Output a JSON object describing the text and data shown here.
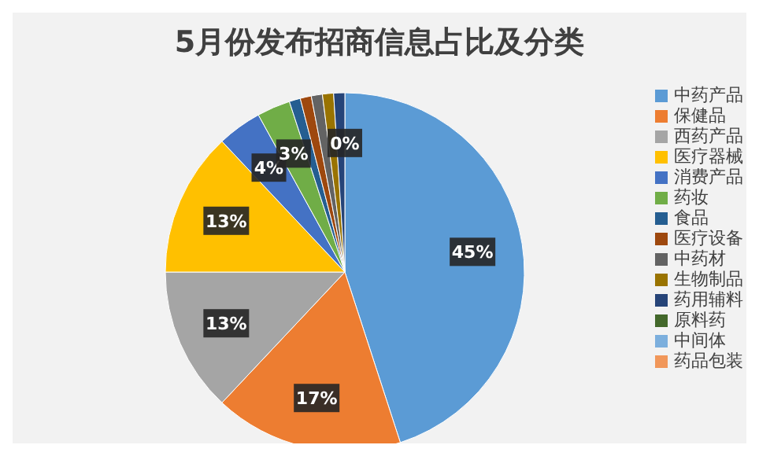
{
  "chart_data": {
    "type": "pie",
    "title": "5月份发布招商信息占比及分类",
    "categories": [
      "中药产品",
      "保健品",
      "西药产品",
      "医疗器械",
      "消费产品",
      "药妆",
      "食品",
      "医疗设备",
      "中药材",
      "生物制品",
      "药用辅料",
      "原料药",
      "中间体",
      "药品包装"
    ],
    "values": [
      45,
      17,
      13,
      13,
      4,
      3,
      1,
      1,
      1,
      1,
      1,
      0,
      0,
      0
    ],
    "colors": [
      "#5b9bd5",
      "#ed7d31",
      "#a5a5a5",
      "#ffc000",
      "#4472c4",
      "#70ad47",
      "#255e91",
      "#9e480e",
      "#636363",
      "#997300",
      "#264478",
      "#43682b",
      "#7cafdd",
      "#f1975a"
    ],
    "value_labels": [
      "45%",
      "17%",
      "13%",
      "13%",
      "4%",
      "3%",
      null,
      null,
      null,
      null,
      null,
      null,
      null,
      "0%"
    ],
    "legend": "right"
  }
}
